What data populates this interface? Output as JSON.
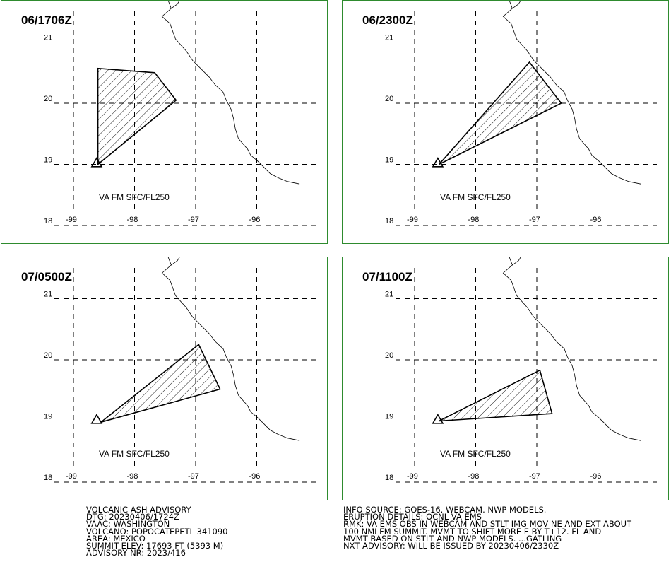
{
  "panels": [
    {
      "time": "06/1706Z",
      "label": "VA FM SFC/FL250",
      "polygon": [
        [
          -98.6,
          19.0
        ],
        [
          -98.6,
          20.57
        ],
        [
          -97.67,
          20.5
        ],
        [
          -97.32,
          20.05
        ]
      ]
    },
    {
      "time": "06/2300Z",
      "label": "VA FM SFC/FL250",
      "polygon": [
        [
          -98.6,
          19.0
        ],
        [
          -97.12,
          20.67
        ],
        [
          -96.6,
          20.0
        ]
      ]
    },
    {
      "time": "07/0500Z",
      "label": "VA FM SFC/FL250",
      "polygon": [
        [
          -98.55,
          18.98
        ],
        [
          -96.95,
          20.25
        ],
        [
          -96.6,
          19.52
        ]
      ]
    },
    {
      "time": "07/1100Z",
      "label": "VA FM SFC/FL250",
      "polygon": [
        [
          -98.6,
          19.0
        ],
        [
          -96.95,
          19.83
        ],
        [
          -96.75,
          19.12
        ]
      ]
    }
  ],
  "axes": {
    "lon_ticks": [
      "-99",
      "-98",
      "-97",
      "-96"
    ],
    "lat_ticks": [
      "21",
      "20",
      "19",
      "18"
    ]
  },
  "volcano": {
    "lon": -98.62,
    "lat": 19.02
  },
  "footer_left": [
    "VOLCANIC ASH ADVISORY",
    "DTG: 20230406/1724Z",
    "VAAC: WASHINGTON",
    "VOLCANO: POPOCATEPETL 341090",
    "AREA: MEXICO",
    "SUMMIT ELEV: 17693 FT (5393 M)",
    "ADVISORY NR: 2023/416"
  ],
  "footer_right": [
    "INFO SOURCE: GOES-16. WEBCAM. NWP MODELS.",
    "ERUPTION DETAILS: OCNL VA EMS",
    "RMK: VA EMS OBS IN WEBCAM AND STLT IMG MOV NE AND EXT ABOUT",
    "100 NMI FM SUMMIT. MVMT TO SHIFT MORE E BY T+12. FL AND",
    "MVMT BASED ON STLT AND NWP MODELS. ...GATLING",
    "NXT ADVISORY: WILL BE ISSUED BY 20230406/2330Z"
  ],
  "colors": {
    "panel_border": "#2e8b2e",
    "ink": "#000000"
  }
}
